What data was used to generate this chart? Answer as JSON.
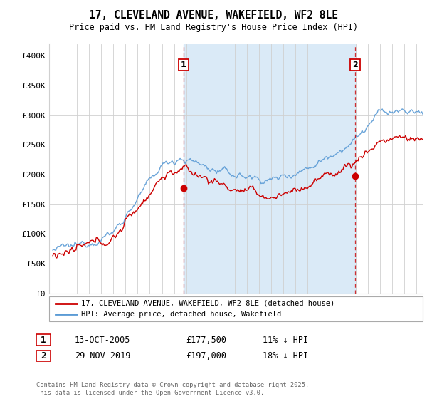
{
  "title": "17, CLEVELAND AVENUE, WAKEFIELD, WF2 8LE",
  "subtitle": "Price paid vs. HM Land Registry's House Price Index (HPI)",
  "ylabel_ticks": [
    "£0",
    "£50K",
    "£100K",
    "£150K",
    "£200K",
    "£250K",
    "£300K",
    "£350K",
    "£400K"
  ],
  "ylim": [
    0,
    420000
  ],
  "yticks": [
    0,
    50000,
    100000,
    150000,
    200000,
    250000,
    300000,
    350000,
    400000
  ],
  "legend_entry1": "17, CLEVELAND AVENUE, WAKEFIELD, WF2 8LE (detached house)",
  "legend_entry2": "HPI: Average price, detached house, Wakefield",
  "annotation1_label": "1",
  "annotation1_date": "13-OCT-2005",
  "annotation1_price": "£177,500",
  "annotation1_hpi": "11% ↓ HPI",
  "annotation2_label": "2",
  "annotation2_date": "29-NOV-2019",
  "annotation2_price": "£197,000",
  "annotation2_hpi": "18% ↓ HPI",
  "footer": "Contains HM Land Registry data © Crown copyright and database right 2025.\nThis data is licensed under the Open Government Licence v3.0.",
  "hpi_color": "#5b9bd5",
  "price_color": "#cc0000",
  "vline_color": "#cc0000",
  "shade_color": "#daeaf7",
  "vline1_x": 2005.79,
  "vline2_x": 2019.92,
  "marker1_y": 177500,
  "marker2_y": 197000,
  "xlim_left": 1994.7,
  "xlim_right": 2025.5
}
